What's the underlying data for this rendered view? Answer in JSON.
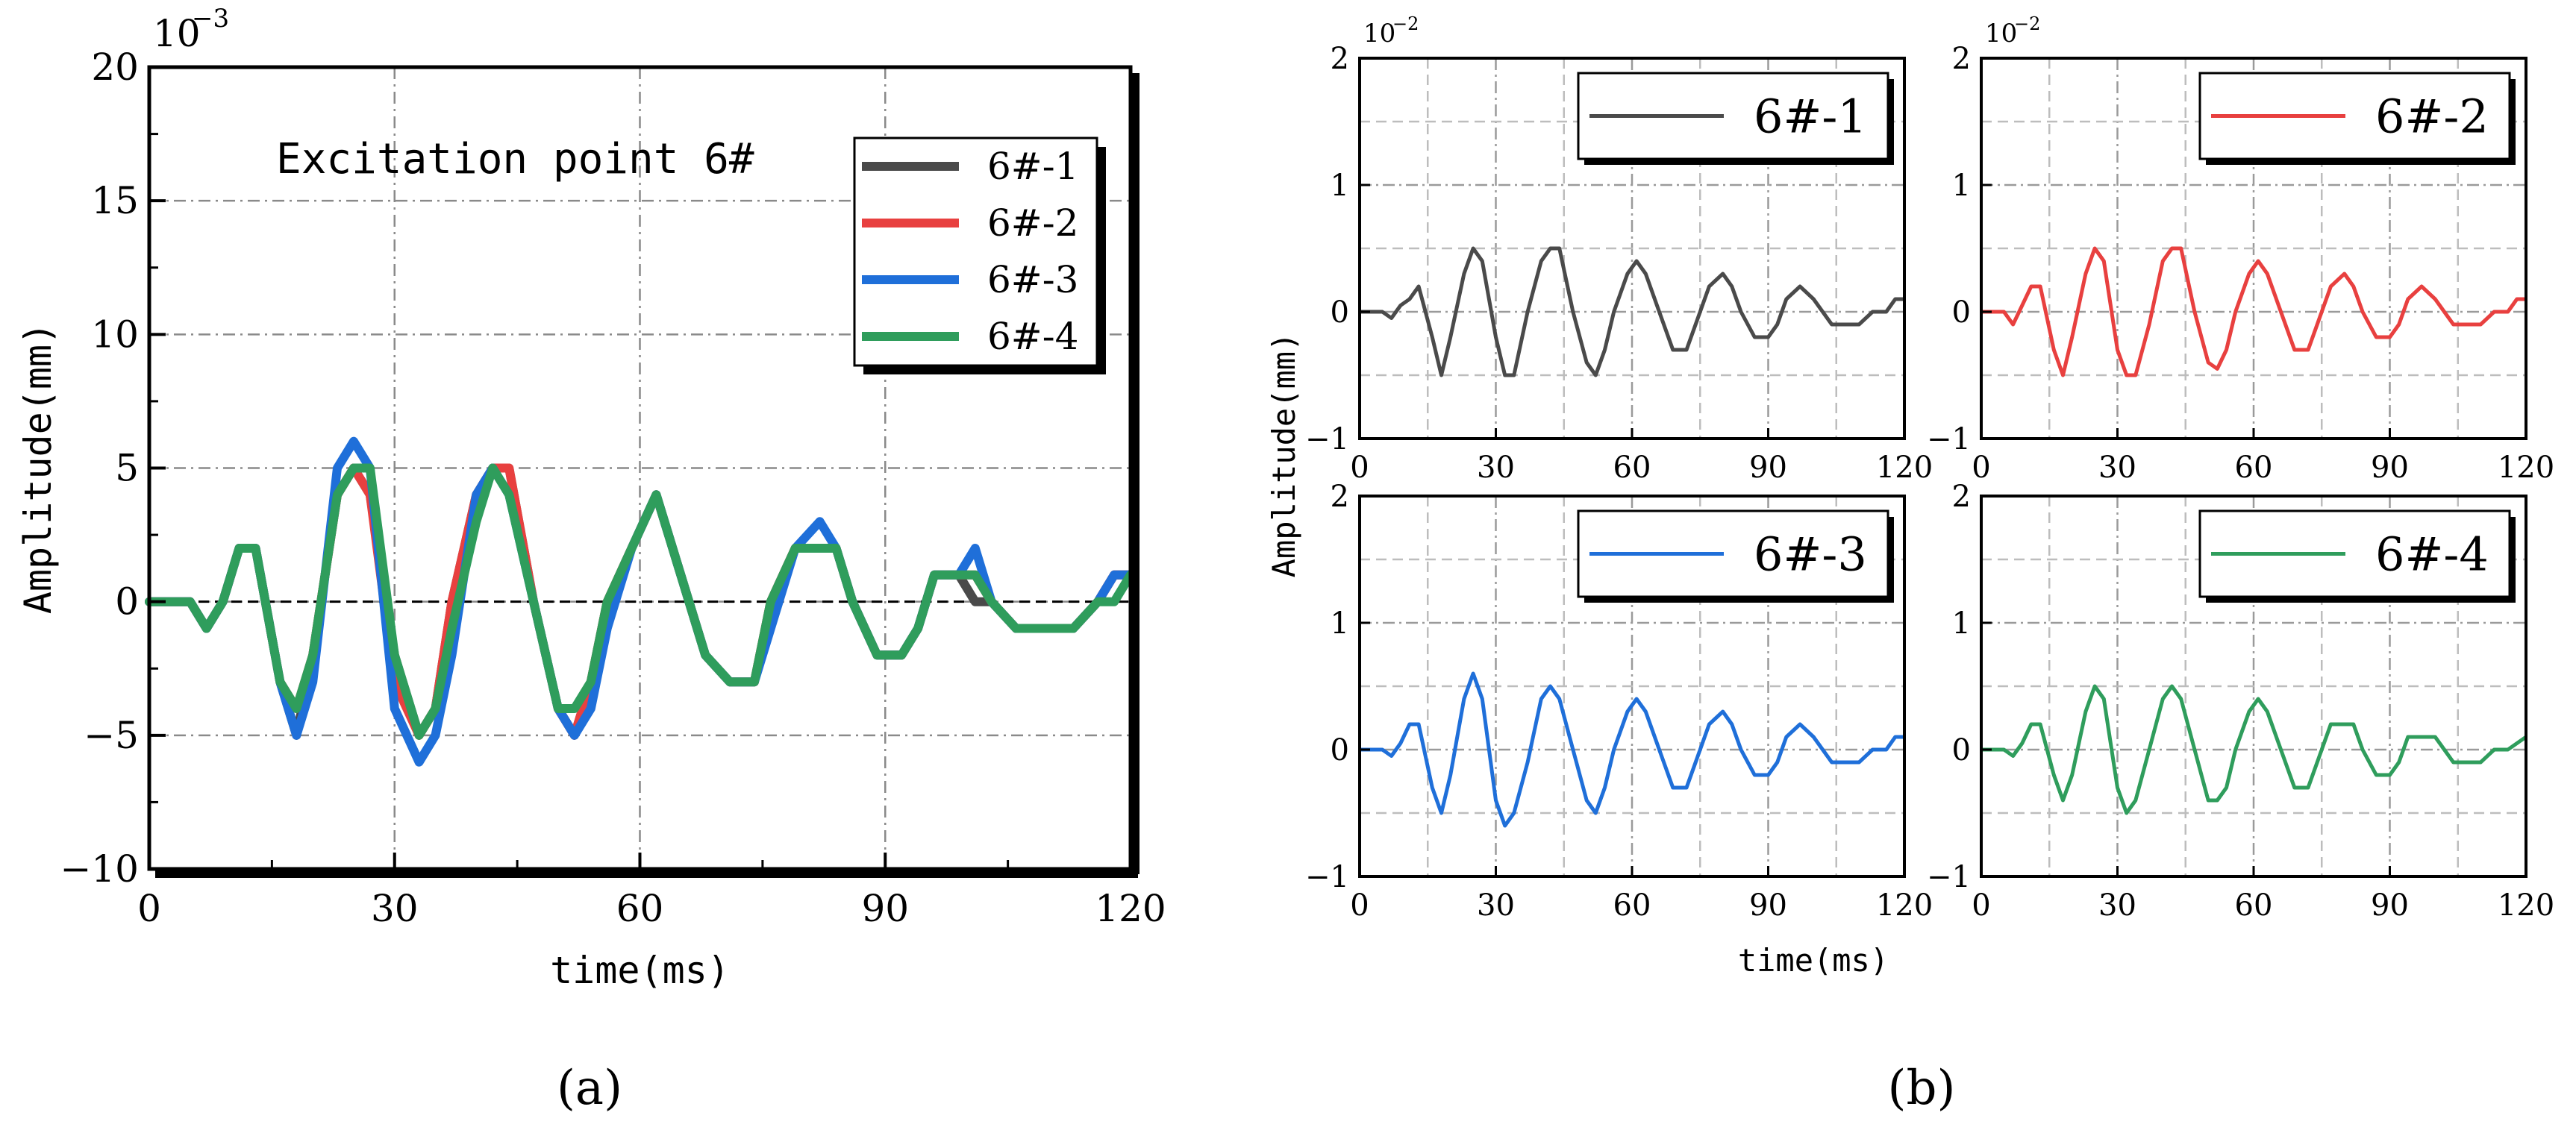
{
  "figure": {
    "panel_a_caption": "(a)",
    "panel_b_caption": "(b)"
  },
  "colors": {
    "6#-1": "#4a4a4a",
    "6#-2": "#e8403f",
    "6#-3": "#1f6fd9",
    "6#-4": "#2f9d5c"
  },
  "chart_data": [
    {
      "id": "a",
      "type": "line",
      "title": "Excitation point 6#",
      "xlabel": "time(ms)",
      "ylabel": "Amplitude(mm)",
      "exponent_label": "10",
      "exponent_power": "-3",
      "xlim": [
        0,
        120
      ],
      "ylim": [
        -10,
        20
      ],
      "xticks": [
        "0",
        "30",
        "60",
        "90",
        "120"
      ],
      "yticks": [
        "−10",
        "−5",
        "0",
        "5",
        "10",
        "15",
        "20"
      ],
      "ytick_values": [
        -10,
        -5,
        0,
        5,
        10,
        15,
        20
      ],
      "xtick_values": [
        0,
        30,
        60,
        90,
        120
      ],
      "grid": "dash-dot",
      "legend_position": "top-right",
      "series": [
        {
          "name": "6#-1",
          "x": [
            0,
            5,
            7,
            9,
            11,
            13,
            16,
            18,
            20,
            23,
            25,
            27,
            30,
            33,
            35,
            37,
            40,
            42,
            44,
            47,
            50,
            52,
            54,
            56,
            59,
            62,
            65,
            68,
            71,
            74,
            76,
            79,
            82,
            84,
            86,
            89,
            92,
            94,
            96,
            99,
            101,
            103,
            106,
            109,
            111,
            113,
            116,
            118,
            120
          ],
          "y": [
            0,
            0,
            -1,
            0,
            2,
            2,
            -3,
            -5,
            -2,
            4,
            5,
            4,
            -2,
            -5,
            -4,
            0,
            4,
            5,
            5,
            0,
            -4,
            -5,
            -3,
            0,
            2,
            4,
            1,
            -2,
            -3,
            -3,
            0,
            2,
            2,
            2,
            0,
            -2,
            -2,
            -1,
            1,
            1,
            0,
            0,
            -1,
            -1,
            -1,
            -1,
            0,
            1,
            1
          ]
        },
        {
          "name": "6#-2",
          "x": [
            0,
            5,
            7,
            9,
            11,
            13,
            16,
            18,
            20,
            23,
            25,
            27,
            30,
            33,
            35,
            37,
            40,
            42,
            44,
            47,
            50,
            52,
            54,
            56,
            59,
            62,
            65,
            68,
            71,
            74,
            76,
            79,
            82,
            84,
            86,
            89,
            92,
            94,
            96,
            99,
            101,
            103,
            106,
            109,
            111,
            113,
            116,
            118,
            120
          ],
          "y": [
            0,
            0,
            -1,
            0,
            2,
            2,
            -3,
            -4,
            -2,
            4,
            5,
            4,
            -3,
            -5,
            -4,
            0,
            4,
            5,
            5,
            0,
            -4,
            -5,
            -3,
            0,
            2,
            4,
            1,
            -2,
            -3,
            -3,
            0,
            2,
            2,
            2,
            0,
            -2,
            -2,
            -1,
            1,
            1,
            1,
            0,
            -1,
            -1,
            -1,
            -1,
            0,
            1,
            1
          ]
        },
        {
          "name": "6#-3",
          "x": [
            0,
            5,
            7,
            9,
            11,
            13,
            16,
            18,
            20,
            23,
            25,
            27,
            30,
            33,
            35,
            37,
            40,
            42,
            44,
            47,
            50,
            52,
            54,
            56,
            59,
            62,
            65,
            68,
            71,
            74,
            76,
            79,
            82,
            84,
            86,
            89,
            92,
            94,
            96,
            99,
            101,
            103,
            106,
            109,
            111,
            113,
            116,
            118,
            120
          ],
          "y": [
            0,
            0,
            -1,
            0,
            2,
            2,
            -3,
            -5,
            -3,
            5,
            6,
            5,
            -4,
            -6,
            -5,
            -2,
            4,
            5,
            4,
            0,
            -4,
            -5,
            -4,
            -1,
            2,
            4,
            1,
            -2,
            -3,
            -3,
            -1,
            2,
            3,
            2,
            0,
            -2,
            -2,
            -1,
            1,
            1,
            2,
            0,
            -1,
            -1,
            -1,
            -1,
            0,
            1,
            1
          ]
        },
        {
          "name": "6#-4",
          "x": [
            0,
            5,
            7,
            9,
            11,
            13,
            16,
            18,
            20,
            23,
            25,
            27,
            30,
            33,
            35,
            37,
            40,
            42,
            44,
            47,
            50,
            52,
            54,
            56,
            59,
            62,
            65,
            68,
            71,
            74,
            76,
            79,
            82,
            84,
            86,
            89,
            92,
            94,
            96,
            99,
            101,
            103,
            106,
            109,
            111,
            113,
            116,
            118,
            120
          ],
          "y": [
            0,
            0,
            -1,
            0,
            2,
            2,
            -3,
            -4,
            -2,
            4,
            5,
            5,
            -2,
            -5,
            -4,
            -1,
            3,
            5,
            4,
            0,
            -4,
            -4,
            -3,
            0,
            2,
            4,
            1,
            -2,
            -3,
            -3,
            0,
            2,
            2,
            2,
            0,
            -2,
            -2,
            -1,
            1,
            1,
            1,
            0,
            -1,
            -1,
            -1,
            -1,
            0,
            0,
            1
          ]
        }
      ]
    },
    {
      "id": "b",
      "type": "line",
      "layout": "2x2 small multiples",
      "xlabel": "time(ms)",
      "ylabel": "Amplitude(mm)",
      "exponent_label": "10",
      "exponent_power": "-2",
      "xlim": [
        0,
        120
      ],
      "ylim": [
        -1,
        2
      ],
      "xticks": [
        "0",
        "30",
        "60",
        "90",
        "120"
      ],
      "xtick_values": [
        0,
        30,
        60,
        90,
        120
      ],
      "yticks": [
        "−1",
        "0",
        "1",
        "2"
      ],
      "ytick_values": [
        -1,
        0,
        1,
        2
      ],
      "grid": "dashed",
      "legend_position": "top-right",
      "series": [
        {
          "name": "6#-1",
          "x": [
            0,
            5,
            7,
            9,
            11,
            13,
            16,
            18,
            20,
            23,
            25,
            27,
            30,
            32,
            34,
            37,
            40,
            42,
            44,
            47,
            50,
            52,
            54,
            56,
            59,
            61,
            63,
            66,
            69,
            72,
            74,
            77,
            80,
            82,
            84,
            87,
            90,
            92,
            94,
            97,
            100,
            102,
            104,
            107,
            110,
            113,
            116,
            118,
            120
          ],
          "y": [
            0,
            0,
            -0.05,
            0.05,
            0.1,
            0.2,
            -0.2,
            -0.5,
            -0.2,
            0.3,
            0.5,
            0.4,
            -0.2,
            -0.5,
            -0.5,
            0,
            0.4,
            0.5,
            0.5,
            0,
            -0.4,
            -0.5,
            -0.3,
            0,
            0.3,
            0.4,
            0.3,
            0,
            -0.3,
            -0.3,
            -0.1,
            0.2,
            0.3,
            0.2,
            0,
            -0.2,
            -0.2,
            -0.1,
            0.1,
            0.2,
            0.1,
            0,
            -0.1,
            -0.1,
            -0.1,
            0,
            0,
            0.1,
            0.1
          ]
        },
        {
          "name": "6#-2",
          "x": [
            0,
            5,
            7,
            9,
            11,
            13,
            16,
            18,
            20,
            23,
            25,
            27,
            30,
            32,
            34,
            37,
            40,
            42,
            44,
            47,
            50,
            52,
            54,
            56,
            59,
            61,
            63,
            66,
            69,
            72,
            74,
            77,
            80,
            82,
            84,
            87,
            90,
            92,
            94,
            97,
            100,
            102,
            104,
            107,
            110,
            113,
            116,
            118,
            120
          ],
          "y": [
            0,
            0,
            -0.1,
            0.05,
            0.2,
            0.2,
            -0.3,
            -0.5,
            -0.2,
            0.3,
            0.5,
            0.4,
            -0.3,
            -0.5,
            -0.5,
            -0.1,
            0.4,
            0.5,
            0.5,
            0,
            -0.4,
            -0.45,
            -0.3,
            0,
            0.3,
            0.4,
            0.3,
            0,
            -0.3,
            -0.3,
            -0.1,
            0.2,
            0.3,
            0.2,
            0,
            -0.2,
            -0.2,
            -0.1,
            0.1,
            0.2,
            0.1,
            0,
            -0.1,
            -0.1,
            -0.1,
            0,
            0,
            0.1,
            0.1
          ]
        },
        {
          "name": "6#-3",
          "x": [
            0,
            5,
            7,
            9,
            11,
            13,
            16,
            18,
            20,
            23,
            25,
            27,
            30,
            32,
            34,
            37,
            40,
            42,
            44,
            47,
            50,
            52,
            54,
            56,
            59,
            61,
            63,
            66,
            69,
            72,
            74,
            77,
            80,
            82,
            84,
            87,
            90,
            92,
            94,
            97,
            100,
            102,
            104,
            107,
            110,
            113,
            116,
            118,
            120
          ],
          "y": [
            0,
            0,
            -0.05,
            0.05,
            0.2,
            0.2,
            -0.3,
            -0.5,
            -0.2,
            0.4,
            0.6,
            0.4,
            -0.4,
            -0.6,
            -0.5,
            -0.1,
            0.4,
            0.5,
            0.4,
            0,
            -0.4,
            -0.5,
            -0.3,
            0,
            0.3,
            0.4,
            0.3,
            0,
            -0.3,
            -0.3,
            -0.1,
            0.2,
            0.3,
            0.2,
            0,
            -0.2,
            -0.2,
            -0.1,
            0.1,
            0.2,
            0.1,
            0,
            -0.1,
            -0.1,
            -0.1,
            0,
            0,
            0.1,
            0.1
          ]
        },
        {
          "name": "6#-4",
          "x": [
            0,
            5,
            7,
            9,
            11,
            13,
            16,
            18,
            20,
            23,
            25,
            27,
            30,
            32,
            34,
            37,
            40,
            42,
            44,
            47,
            50,
            52,
            54,
            56,
            59,
            61,
            63,
            66,
            69,
            72,
            74,
            77,
            80,
            82,
            84,
            87,
            90,
            92,
            94,
            97,
            100,
            102,
            104,
            107,
            110,
            113,
            116,
            118,
            120
          ],
          "y": [
            0,
            0,
            -0.05,
            0.05,
            0.2,
            0.2,
            -0.2,
            -0.4,
            -0.2,
            0.3,
            0.5,
            0.4,
            -0.3,
            -0.5,
            -0.4,
            0,
            0.4,
            0.5,
            0.4,
            0,
            -0.4,
            -0.4,
            -0.3,
            0,
            0.3,
            0.4,
            0.3,
            0,
            -0.3,
            -0.3,
            -0.1,
            0.2,
            0.2,
            0.2,
            0,
            -0.2,
            -0.2,
            -0.1,
            0.1,
            0.1,
            0.1,
            0,
            -0.1,
            -0.1,
            -0.1,
            0,
            0,
            0.05,
            0.1
          ]
        }
      ]
    }
  ]
}
